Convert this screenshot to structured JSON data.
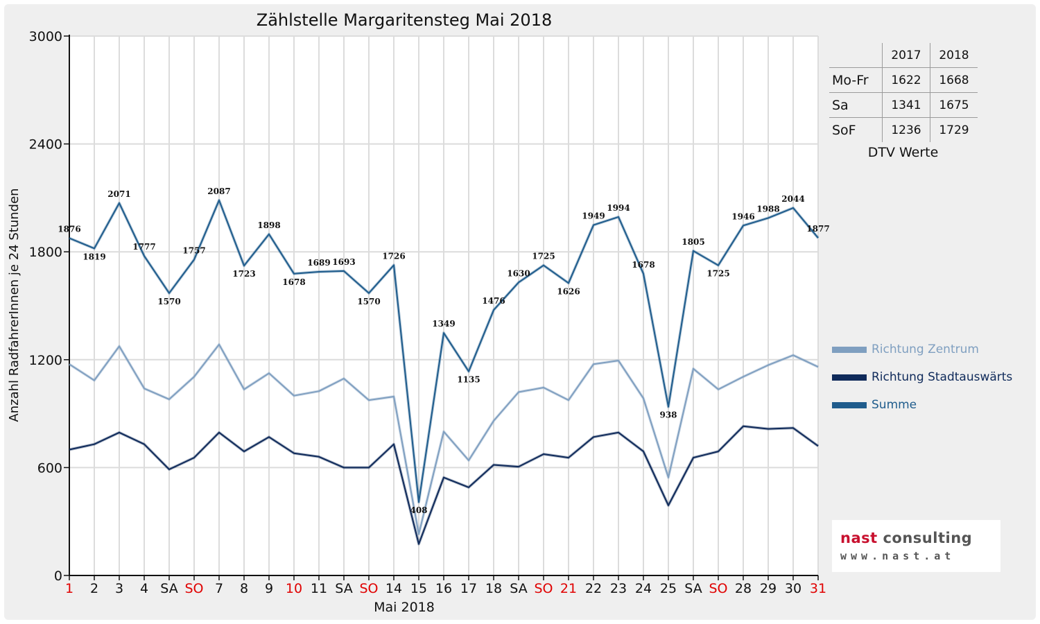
{
  "chart_data": {
    "type": "line",
    "title": "Zählstelle Margaritensteg Mai 2018",
    "xlabel": "Mai 2018",
    "ylabel": "Anzahl RadfahrerInnen je 24 Stunden",
    "ylim": [
      0,
      3000
    ],
    "yticks": [
      0,
      600,
      1200,
      1800,
      2400,
      3000
    ],
    "grid": true,
    "legend_position": "right",
    "categories": [
      "1",
      "2",
      "3",
      "4",
      "SA",
      "SO",
      "7",
      "8",
      "9",
      "10",
      "11",
      "SA",
      "SO",
      "14",
      "15",
      "16",
      "17",
      "18",
      "SA",
      "SO",
      "21",
      "22",
      "23",
      "24",
      "25",
      "SA",
      "SO",
      "28",
      "29",
      "30",
      "31"
    ],
    "red_categories": [
      0,
      5,
      9,
      12,
      19,
      20,
      26,
      30
    ],
    "series": [
      {
        "name": "Richtung Zentrum",
        "color": "#7f9fc0",
        "values": [
          1175,
          1085,
          1275,
          1040,
          980,
          1105,
          1285,
          1035,
          1125,
          1000,
          1025,
          1095,
          975,
          995,
          230,
          800,
          640,
          860,
          1020,
          1045,
          975,
          1175,
          1195,
          985,
          545,
          1150,
          1035,
          1105,
          1170,
          1225,
          1160
        ]
      },
      {
        "name": "Richtung Stadtauswärts",
        "color": "#0f2a5a",
        "values": [
          700,
          730,
          795,
          730,
          590,
          655,
          795,
          690,
          770,
          680,
          660,
          600,
          600,
          730,
          175,
          545,
          490,
          615,
          605,
          675,
          655,
          770,
          795,
          690,
          390,
          655,
          690,
          830,
          815,
          820,
          720
        ]
      },
      {
        "name": "Summe",
        "color": "#1f5c8c",
        "values": [
          1876,
          1819,
          2071,
          1777,
          1570,
          1757,
          2087,
          1723,
          1898,
          1678,
          1689,
          1693,
          1570,
          1726,
          408,
          1349,
          1135,
          1476,
          1630,
          1725,
          1626,
          1949,
          1994,
          1678,
          938,
          1805,
          1725,
          1946,
          1988,
          2044,
          1877
        ]
      }
    ]
  },
  "stats_table": {
    "header": [
      "2017",
      "2018"
    ],
    "rows": [
      {
        "label": "Mo-Fr",
        "v2017": "1622",
        "v2018": "1668"
      },
      {
        "label": "Sa",
        "v2017": "1341",
        "v2018": "1675"
      },
      {
        "label": "SoF",
        "v2017": "1236",
        "v2018": "1729"
      }
    ],
    "caption": "DTV Werte"
  },
  "logo": {
    "brand_red": "nast",
    "brand_grey": "consulting",
    "url": "www.nast.at"
  },
  "colors": {
    "weekday": "#111111",
    "holiday": "#e00000",
    "grid": "#dcdcdc"
  }
}
